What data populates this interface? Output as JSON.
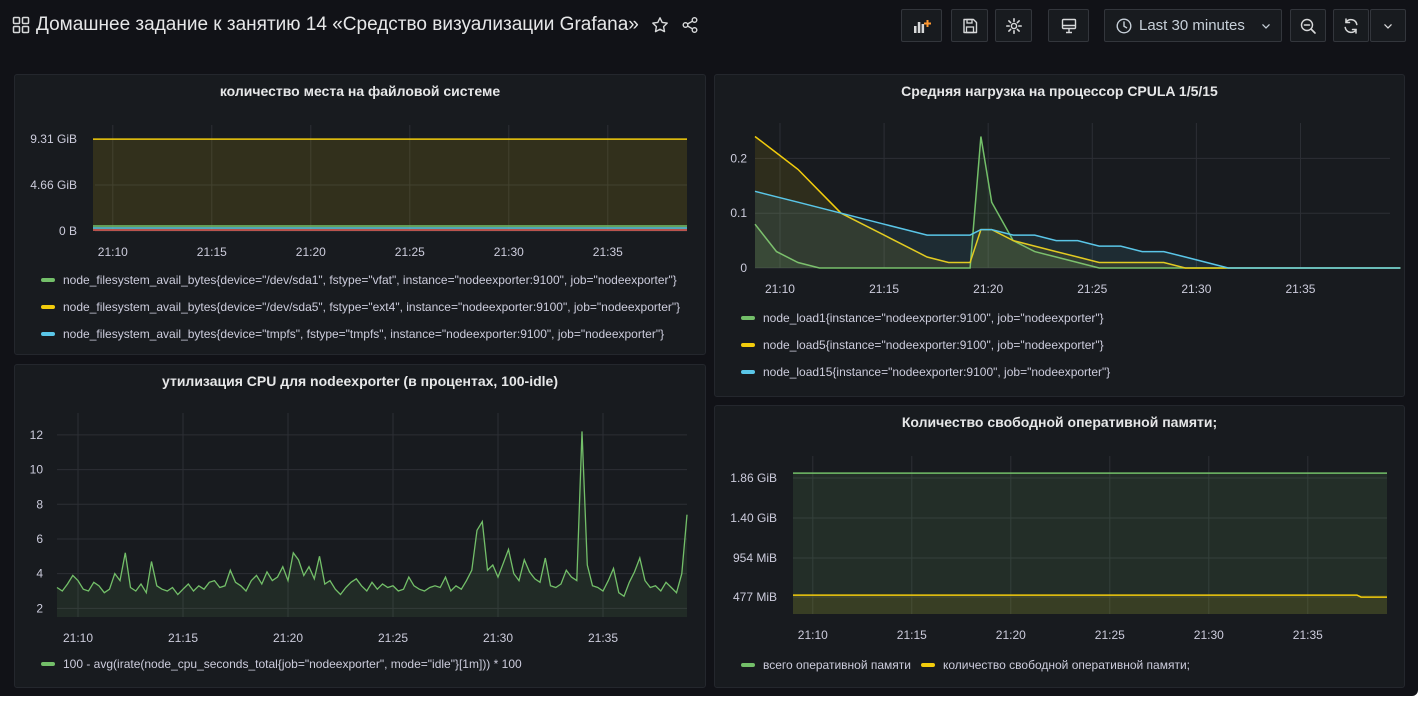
{
  "dashboard": {
    "title": "Домашнее задание к занятию 14 «Средство визуализации Grafana»",
    "icons": [
      "grid-icon",
      "star-icon",
      "share-icon"
    ],
    "time_range": "Last 30 minutes",
    "toolbar_icons": [
      "add-panel-icon",
      "save-icon",
      "settings-icon",
      "tv-mode-icon",
      "clock-icon",
      "chevron-down-icon",
      "zoom-out-icon",
      "refresh-icon",
      "chevron-down-icon"
    ]
  },
  "colors": {
    "green": "#73bf69",
    "yellow": "#f2cc0c",
    "blue": "#5ac6e8",
    "red": "#e05050"
  },
  "panels": {
    "fs": {
      "title": "количество места на файловой системе",
      "legend": [
        "node_filesystem_avail_bytes{device=\"/dev/sda1\", fstype=\"vfat\", instance=\"nodeexporter:9100\", job=\"nodeexporter\"}",
        "node_filesystem_avail_bytes{device=\"/dev/sda5\", fstype=\"ext4\", instance=\"nodeexporter:9100\", job=\"nodeexporter\"}",
        "node_filesystem_avail_bytes{device=\"tmpfs\", fstype=\"tmpfs\", instance=\"nodeexporter:9100\", job=\"nodeexporter\"}"
      ]
    },
    "load": {
      "title": "Средняя нагрузка на процессор CPULA 1/5/15",
      "legend": [
        "node_load1{instance=\"nodeexporter:9100\", job=\"nodeexporter\"}",
        "node_load5{instance=\"nodeexporter:9100\", job=\"nodeexporter\"}",
        "node_load15{instance=\"nodeexporter:9100\", job=\"nodeexporter\"}"
      ]
    },
    "cpu": {
      "title": "утилизация CPU для nodeexporter (в процентах, 100-idle)",
      "legend": [
        "100 - avg(irate(node_cpu_seconds_total{job=\"nodeexporter\", mode=\"idle\"}[1m])) * 100"
      ]
    },
    "mem": {
      "title": "Количество свободной оперативной памяти;",
      "legend": [
        "всего оперативной памяти",
        "количество свободной оперативной памяти;"
      ]
    }
  },
  "chart_data": [
    {
      "id": "fs",
      "type": "area",
      "title": "количество места на файловой системе",
      "x_ticks": [
        "21:10",
        "21:15",
        "21:20",
        "21:25",
        "21:30",
        "21:35"
      ],
      "y_ticks": [
        "0 B",
        "4.66 GiB",
        "9.31 GiB"
      ],
      "ylim_gib": [
        0,
        9.31
      ],
      "series": [
        {
          "name": "node_filesystem_avail_bytes{device=\"/dev/sda1\", fstype=\"vfat\", instance=\"nodeexporter:9100\", job=\"nodeexporter\"}",
          "color": "#73bf69",
          "value_gib": 0.5
        },
        {
          "name": "node_filesystem_avail_bytes{device=\"/dev/sda5\", fstype=\"ext4\", instance=\"nodeexporter:9100\", job=\"nodeexporter\"}",
          "color": "#f2cc0c",
          "value_gib": 9.3
        },
        {
          "name": "node_filesystem_avail_bytes{device=\"tmpfs\", fstype=\"tmpfs\", instance=\"nodeexporter:9100\", job=\"nodeexporter\"}",
          "color": "#5ac6e8",
          "value_gib": 0.3
        }
      ]
    },
    {
      "id": "load",
      "type": "line",
      "title": "Средняя нагрузка на процессор CPULA 1/5/15",
      "x_ticks": [
        "21:10",
        "21:15",
        "21:20",
        "21:25",
        "21:30",
        "21:35"
      ],
      "y_ticks": [
        "0",
        "0.1",
        "0.2"
      ],
      "ylim": [
        0,
        0.25
      ],
      "x_minutes": [
        0,
        1,
        2,
        3,
        4,
        5,
        6,
        7,
        8,
        9,
        10,
        10.5,
        11,
        12,
        13,
        14,
        15,
        16,
        17,
        18,
        19,
        20,
        21,
        22,
        23,
        24,
        25,
        26,
        27,
        28,
        29,
        30
      ],
      "series": [
        {
          "name": "node_load1{instance=\"nodeexporter:9100\", job=\"nodeexporter\"}",
          "color": "#73bf69",
          "values": [
            0.08,
            0.03,
            0.01,
            0,
            0,
            0,
            0,
            0,
            0,
            0,
            0,
            0.24,
            0.12,
            0.05,
            0.03,
            0.02,
            0.01,
            0,
            0,
            0,
            0,
            0,
            0,
            0,
            0,
            0,
            0,
            0,
            0,
            0,
            0,
            0
          ]
        },
        {
          "name": "node_load5{instance=\"nodeexporter:9100\", job=\"nodeexporter\"}",
          "color": "#f2cc0c",
          "values": [
            0.24,
            0.21,
            0.18,
            0.14,
            0.1,
            0.08,
            0.06,
            0.04,
            0.02,
            0.01,
            0.01,
            0.07,
            0.07,
            0.05,
            0.04,
            0.03,
            0.02,
            0.01,
            0.01,
            0.01,
            0.01,
            0,
            0,
            0,
            0,
            0,
            0,
            0,
            0,
            0,
            0,
            0
          ]
        },
        {
          "name": "node_load15{instance=\"nodeexporter:9100\", job=\"nodeexporter\"}",
          "color": "#5ac6e8",
          "values": [
            0.14,
            0.13,
            0.12,
            0.11,
            0.1,
            0.09,
            0.08,
            0.07,
            0.06,
            0.06,
            0.06,
            0.07,
            0.07,
            0.06,
            0.06,
            0.05,
            0.05,
            0.04,
            0.04,
            0.03,
            0.03,
            0.02,
            0.01,
            0,
            0,
            0,
            0,
            0,
            0,
            0,
            0,
            0
          ]
        }
      ]
    },
    {
      "id": "cpu",
      "type": "line",
      "title": "утилизация CPU для nodeexporter (в процентах, 100-idle)",
      "x_ticks": [
        "21:10",
        "21:15",
        "21:20",
        "21:25",
        "21:30",
        "21:35"
      ],
      "y_ticks": [
        "2",
        "4",
        "6",
        "8",
        "10",
        "12"
      ],
      "ylim": [
        1.5,
        12.8
      ],
      "x_start_minute": -0.5,
      "x_step_minutes": 0.25,
      "series": [
        {
          "name": "100 - avg(irate(node_cpu_seconds_total{job=\"nodeexporter\", mode=\"idle\"}[1m])) * 100",
          "color": "#73bf69",
          "values": [
            3.2,
            3.0,
            3.4,
            3.9,
            3.6,
            3.1,
            3.0,
            3.5,
            3.3,
            2.9,
            3.1,
            4.0,
            3.6,
            5.2,
            3.2,
            3.0,
            3.4,
            2.9,
            4.7,
            3.3,
            3.1,
            3.0,
            3.2,
            2.8,
            3.1,
            3.4,
            3.0,
            3.3,
            3.1,
            3.5,
            3.6,
            3.2,
            3.3,
            4.2,
            3.5,
            3.3,
            3.0,
            3.6,
            3.9,
            3.4,
            4.1,
            3.6,
            3.8,
            4.4,
            3.6,
            5.2,
            4.8,
            3.9,
            4.4,
            3.7,
            5.0,
            3.4,
            3.6,
            3.1,
            2.8,
            3.2,
            3.5,
            3.7,
            3.3,
            3.0,
            3.5,
            3.1,
            3.4,
            3.2,
            3.3,
            3.0,
            3.1,
            3.8,
            3.3,
            3.1,
            3.0,
            3.2,
            3.3,
            3.2,
            3.8,
            3.0,
            3.3,
            3.1,
            3.6,
            4.2,
            6.5,
            7.0,
            4.2,
            4.5,
            3.8,
            4.6,
            5.4,
            4.0,
            3.6,
            4.8,
            4.1,
            3.7,
            3.5,
            4.9,
            3.3,
            3.2,
            3.4,
            4.2,
            3.8,
            3.6,
            12.2,
            4.5,
            3.3,
            3.2,
            3.0,
            3.6,
            4.3,
            2.9,
            2.7,
            3.5,
            4.1,
            4.9,
            3.6,
            3.2,
            3.3,
            3.0,
            3.5,
            3.2,
            2.9,
            4.0,
            7.4
          ]
        }
      ]
    },
    {
      "id": "mem",
      "type": "area",
      "title": "Количество свободной оперативной памяти;",
      "x_ticks": [
        "21:10",
        "21:15",
        "21:20",
        "21:25",
        "21:30",
        "21:35"
      ],
      "y_ticks": [
        "477 MiB",
        "954 MiB",
        "1.40 GiB",
        "1.86 GiB"
      ],
      "ylim_mib": [
        477,
        1908
      ],
      "series": [
        {
          "name": "всего оперативной памяти",
          "color": "#73bf69",
          "value_gib": 1.92
        },
        {
          "name": "количество свободной оперативной памяти;",
          "color": "#f2cc0c",
          "value_mib": 500
        }
      ]
    }
  ]
}
